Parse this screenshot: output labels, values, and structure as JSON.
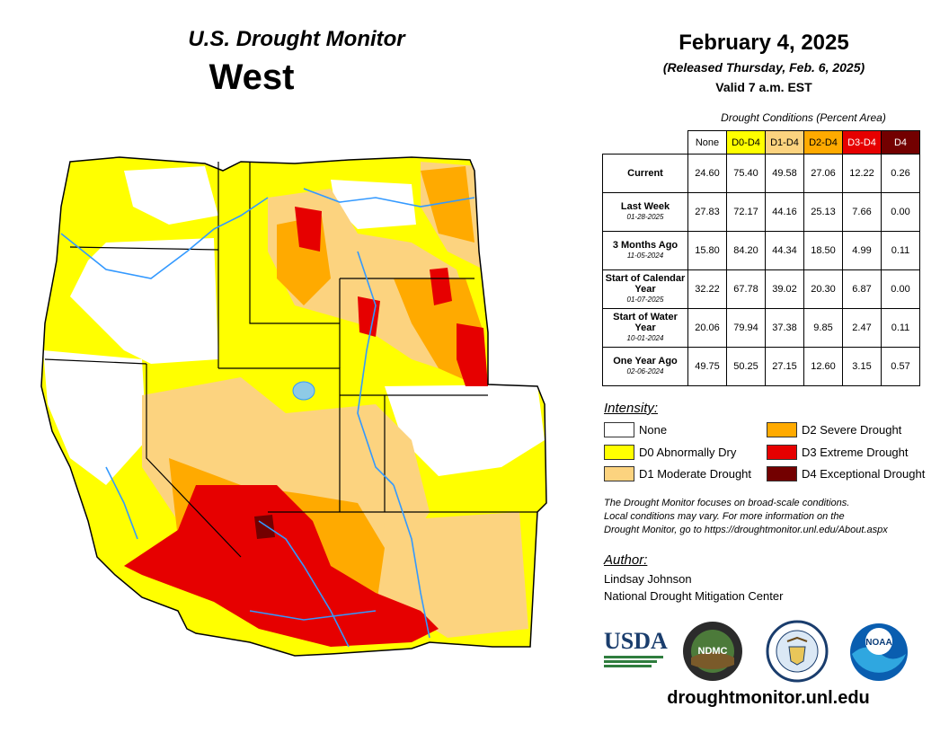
{
  "header": {
    "title": "U.S. Drought Monitor",
    "region": "West",
    "date": "February 4, 2025",
    "released": "(Released Thursday, Feb. 6, 2025)",
    "valid": "Valid 7 a.m. EST"
  },
  "table": {
    "caption": "Drought Conditions (Percent Area)",
    "columns": [
      "None",
      "D0-D4",
      "D1-D4",
      "D2-D4",
      "D3-D4",
      "D4"
    ],
    "column_colors": [
      "#ffffff",
      "#ffff00",
      "#fcd37f",
      "#ffaa00",
      "#e60000",
      "#730000"
    ],
    "rows": [
      {
        "label": "Current",
        "date": "",
        "values": [
          "24.60",
          "75.40",
          "49.58",
          "27.06",
          "12.22",
          "0.26"
        ]
      },
      {
        "label": "Last Week",
        "date": "01-28-2025",
        "values": [
          "27.83",
          "72.17",
          "44.16",
          "25.13",
          "7.66",
          "0.00"
        ]
      },
      {
        "label": "3 Months Ago",
        "date": "11-05-2024",
        "values": [
          "15.80",
          "84.20",
          "44.34",
          "18.50",
          "4.99",
          "0.11"
        ]
      },
      {
        "label": "Start of Calendar Year",
        "date": "01-07-2025",
        "values": [
          "32.22",
          "67.78",
          "39.02",
          "20.30",
          "6.87",
          "0.00"
        ]
      },
      {
        "label": "Start of Water Year",
        "date": "10-01-2024",
        "values": [
          "20.06",
          "79.94",
          "37.38",
          "9.85",
          "2.47",
          "0.11"
        ]
      },
      {
        "label": "One Year Ago",
        "date": "02-06-2024",
        "values": [
          "49.75",
          "50.25",
          "27.15",
          "12.60",
          "3.15",
          "0.57"
        ]
      }
    ]
  },
  "legend": {
    "heading": "Intensity:",
    "items": [
      {
        "label": "None",
        "color": "#ffffff"
      },
      {
        "label": "D0 Abnormally Dry",
        "color": "#ffff00"
      },
      {
        "label": "D1 Moderate Drought",
        "color": "#fcd37f"
      },
      {
        "label": "D2 Severe Drought",
        "color": "#ffaa00"
      },
      {
        "label": "D3 Extreme Drought",
        "color": "#e60000"
      },
      {
        "label": "D4 Exceptional Drought",
        "color": "#730000"
      }
    ]
  },
  "note": {
    "line1": "The Drought Monitor focuses on broad-scale conditions.",
    "line2": "Local conditions may vary. For more information on the",
    "line3": "Drought Monitor, go to https://droughtmonitor.unl.edu/About.aspx"
  },
  "author": {
    "heading": "Author:",
    "name": "Lindsay Johnson",
    "org": "National Drought Mitigation Center"
  },
  "logos": {
    "usda": "USDA",
    "ndmc": "NDMC",
    "noaa": "NOAA"
  },
  "footer_url": "droughtmonitor.unl.edu"
}
